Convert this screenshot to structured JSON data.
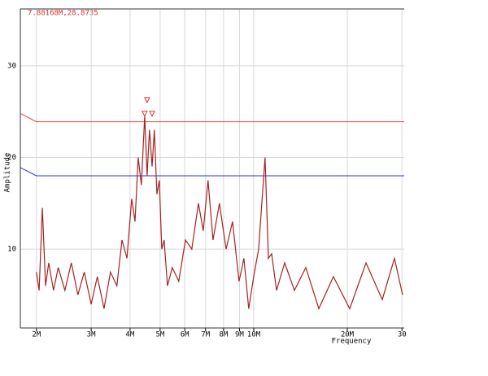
{
  "chart_data": {
    "type": "line",
    "title": "7.88168M,28.8735",
    "xlabel": "Frequency",
    "ylabel": "Amplitude",
    "xscale": "log",
    "grid": true,
    "xlim": [
      1.775,
      30.5
    ],
    "ylim": [
      1.4,
      36.2
    ],
    "xticks": [
      {
        "value": 2,
        "label": "2M"
      },
      {
        "value": 3,
        "label": "3M"
      },
      {
        "value": 4,
        "label": "4M"
      },
      {
        "value": 5,
        "label": "5M"
      },
      {
        "value": 6,
        "label": "6M"
      },
      {
        "value": 7,
        "label": "7M"
      },
      {
        "value": 8,
        "label": "8M"
      },
      {
        "value": 9,
        "label": "9M"
      },
      {
        "value": 10,
        "label": "10M"
      },
      {
        "value": 20,
        "label": "20M"
      },
      {
        "value": 30,
        "label": "30"
      }
    ],
    "yticks": [
      10,
      20,
      30
    ],
    "limits": [
      {
        "color": "#f04040",
        "x": [
          1.775,
          2,
          30.5
        ],
        "values": [
          24.8,
          23.9,
          23.9
        ]
      },
      {
        "color": "#3030d0",
        "x": [
          1.775,
          2,
          30.5
        ],
        "values": [
          18.9,
          18.0,
          18.0
        ]
      }
    ],
    "series": [
      {
        "color": "#a52222",
        "x": [
          2.0,
          2.04,
          2.09,
          2.14,
          2.19,
          2.27,
          2.35,
          2.47,
          2.59,
          2.72,
          2.85,
          3.0,
          3.14,
          3.3,
          3.46,
          3.63,
          3.77,
          3.91,
          4.05,
          4.15,
          4.25,
          4.35,
          4.46,
          4.54,
          4.62,
          4.71,
          4.79,
          4.88,
          4.97,
          5.06,
          5.15,
          5.28,
          5.47,
          5.74,
          6.03,
          6.32,
          6.64,
          6.88,
          7.13,
          7.4,
          7.76,
          8.15,
          8.55,
          8.97,
          9.3,
          9.64,
          10.0,
          10.37,
          10.62,
          10.88,
          11.15,
          11.42,
          11.84,
          12.58,
          13.52,
          14.71,
          16.2,
          18.05,
          20.37,
          22.98,
          25.92,
          28.38,
          30.14
        ],
        "values": [
          7.5,
          5.5,
          14.5,
          6,
          8.5,
          5.5,
          8,
          5.5,
          8.5,
          5,
          7.5,
          4,
          7,
          3.5,
          7.5,
          6,
          11,
          9,
          15.5,
          13,
          20,
          17,
          24.5,
          18,
          23,
          19,
          23,
          16,
          17.5,
          10,
          11,
          6,
          8,
          6.5,
          11,
          10,
          15,
          12,
          17.5,
          11,
          15,
          10,
          13,
          6.5,
          9,
          3.5,
          7,
          10,
          15,
          20,
          9,
          9.5,
          5.5,
          8.5,
          5.5,
          8,
          3.5,
          7,
          3.5,
          8.5,
          4.5,
          9,
          5
        ]
      }
    ],
    "markers": {
      "color": "#e03030",
      "x": [
        4.46,
        4.54,
        4.71
      ],
      "values": [
        24.5,
        26,
        24.5
      ]
    }
  }
}
